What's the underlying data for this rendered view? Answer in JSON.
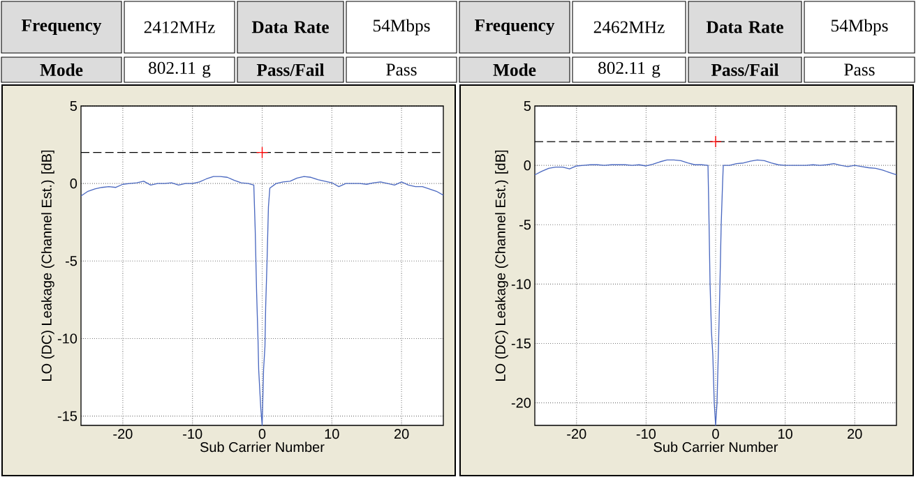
{
  "chart_data": [
    {
      "type": "line",
      "xlabel": "Sub Carrier Number",
      "ylabel": "LO (DC) Leakage (Channel Est.) [dB]",
      "annotations": [
        "Frequency",
        "2412MHz",
        "Data Rate",
        "54Mbps",
        "Mode",
        "802.11 g",
        "Pass/Fail",
        "Pass"
      ],
      "xlim": [
        -26,
        26
      ],
      "ylim": [
        -15.6,
        5
      ],
      "xticks": [
        -20,
        -10,
        0,
        10,
        20
      ],
      "yticks": [
        -15,
        -10,
        -5,
        0,
        5
      ],
      "grid": true,
      "ref_lines": [
        {
          "axis": "y",
          "value": 2,
          "color": "#000000",
          "line_style": "dashed"
        }
      ],
      "series": [
        {
          "color": "#4a68c0",
          "x": [
            -26,
            -25,
            -24,
            -23,
            -22,
            -21,
            -20,
            -19,
            -18,
            -17,
            -16,
            -15,
            -14,
            -13,
            -12,
            -11,
            -10,
            -9,
            -8,
            -7,
            -6,
            -5,
            -4,
            -3,
            -2,
            -1.2,
            -1,
            -0.8,
            -0.6,
            -0.5,
            -0.2,
            0,
            0.2,
            0.4,
            0.5,
            0.7,
            0.9,
            1.1,
            2,
            3,
            4,
            5,
            6,
            7,
            8,
            9,
            10,
            11,
            12,
            13,
            14,
            15,
            16,
            17,
            18,
            19,
            20,
            21,
            22,
            23,
            24,
            25,
            26
          ],
          "values": [
            -0.8,
            -0.5,
            -0.35,
            -0.25,
            -0.2,
            -0.25,
            -0.05,
            0,
            0.05,
            0.15,
            -0.1,
            0,
            0,
            0.05,
            -0.1,
            0,
            0,
            0.1,
            0.3,
            0.45,
            0.45,
            0.4,
            0.2,
            0.05,
            0,
            -0.1,
            -3,
            -7,
            -10,
            -12,
            -14.5,
            -15.6,
            -12,
            -10.5,
            -8,
            -5,
            -1.5,
            -0.3,
            0,
            0.1,
            0.15,
            0.35,
            0.45,
            0.4,
            0.25,
            0.15,
            0.05,
            -0.2,
            0,
            0,
            0,
            -0.05,
            0.05,
            0.1,
            0,
            -0.1,
            0.1,
            -0.1,
            -0.2,
            -0.2,
            -0.35,
            -0.5,
            -0.75
          ]
        },
        {
          "type": "scatter",
          "color": "#ff0000",
          "marker": "cross",
          "x": [
            0
          ],
          "values": [
            2
          ]
        }
      ]
    },
    {
      "type": "line",
      "xlabel": "Sub Carrier Number",
      "ylabel": "LO (DC) Leakage (Channel Est.) [dB]",
      "annotations": [
        "Frequency",
        "2462MHz",
        "Data Rate",
        "54Mbps",
        "Mode",
        "802.11 g",
        "Pass/Fail",
        "Pass"
      ],
      "xlim": [
        -26,
        26
      ],
      "ylim": [
        -21.9,
        5
      ],
      "xticks": [
        -20,
        -10,
        0,
        10,
        20
      ],
      "yticks": [
        -20,
        -15,
        -10,
        -5,
        0,
        5
      ],
      "grid": true,
      "ref_lines": [
        {
          "axis": "y",
          "value": 2,
          "color": "#000000",
          "line_style": "dashed"
        }
      ],
      "series": [
        {
          "color": "#4a68c0",
          "x": [
            -26,
            -25,
            -24,
            -23,
            -22,
            -21,
            -20,
            -19,
            -18,
            -17,
            -16,
            -15,
            -14,
            -13,
            -12,
            -11,
            -10,
            -9,
            -8,
            -7,
            -6,
            -5,
            -4,
            -3,
            -2,
            -1.1,
            -1,
            -0.8,
            -0.6,
            -0.4,
            -0.2,
            0,
            0.2,
            0.4,
            0.6,
            0.8,
            1,
            1.1,
            2,
            3,
            4,
            5,
            6,
            7,
            8,
            9,
            10,
            11,
            12,
            13,
            14,
            15,
            16,
            17,
            18,
            19,
            20,
            21,
            22,
            23,
            24,
            25,
            26
          ],
          "values": [
            -0.8,
            -0.5,
            -0.25,
            -0.15,
            -0.15,
            -0.3,
            -0.05,
            0,
            0.05,
            0.05,
            0,
            0.05,
            0.05,
            0.05,
            0,
            0.05,
            -0.05,
            0.1,
            0.3,
            0.45,
            0.45,
            0.4,
            0.2,
            0.05,
            0.05,
            0,
            -3,
            -10,
            -14,
            -16,
            -20,
            -21.9,
            -20,
            -15.5,
            -10.5,
            -5,
            -1.5,
            0,
            0,
            0.15,
            0.2,
            0.35,
            0.45,
            0.4,
            0.2,
            0.05,
            0,
            0,
            0,
            0,
            0.05,
            0,
            0.05,
            0.15,
            0,
            -0.1,
            0,
            -0.1,
            -0.2,
            -0.25,
            -0.4,
            -0.6,
            -0.8
          ]
        },
        {
          "type": "scatter",
          "color": "#ff0000",
          "marker": "cross",
          "x": [
            0
          ],
          "values": [
            2
          ]
        }
      ]
    }
  ]
}
